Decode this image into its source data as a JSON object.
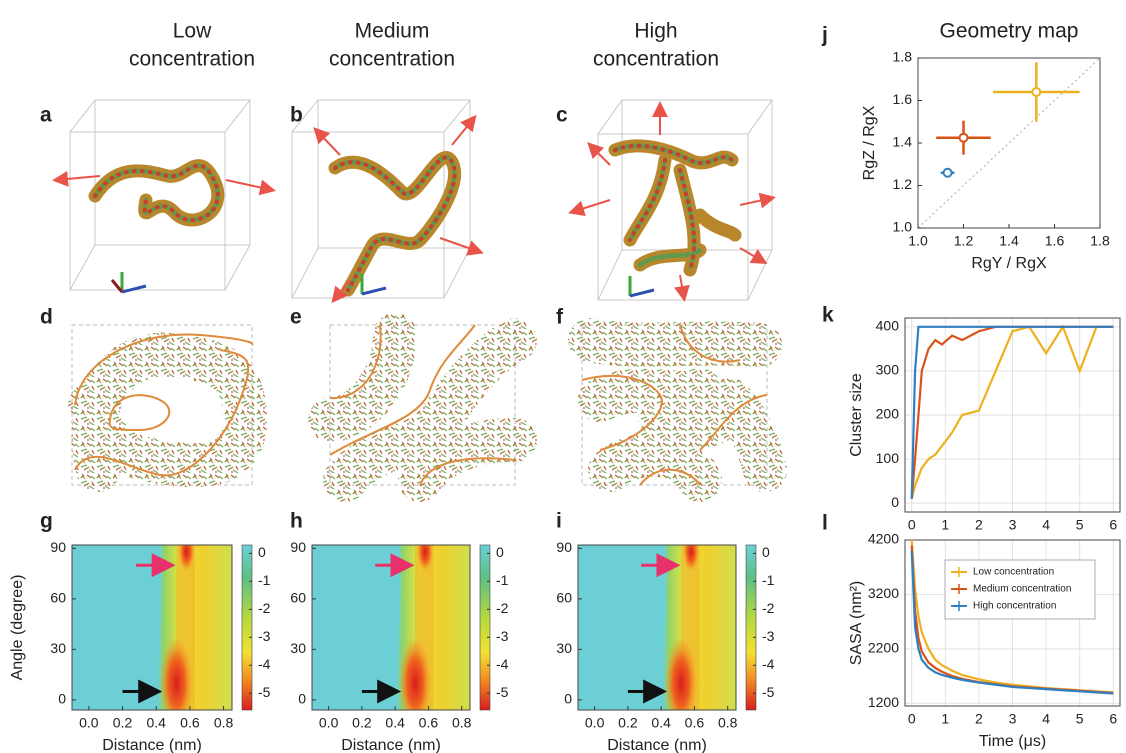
{
  "column_titles": [
    [
      "Low",
      "concentration"
    ],
    [
      "Medium",
      "concentration"
    ],
    [
      "High",
      "concentration"
    ]
  ],
  "panel_labels": [
    "a",
    "b",
    "c",
    "d",
    "e",
    "f",
    "g",
    "h",
    "i",
    "j",
    "k",
    "l"
  ],
  "chart_data": [
    {
      "type": "heatmap",
      "xlabel": "Distance (nm)",
      "ylabel": "Angle (degree)",
      "xlim": [
        -0.1,
        0.85
      ],
      "ylim": [
        -6,
        92
      ],
      "xticks": [
        {
          "value": 0,
          "label": "0.0"
        },
        {
          "value": 0.2,
          "label": "0.2"
        },
        {
          "value": 0.4,
          "label": "0.4"
        },
        {
          "value": 0.6,
          "label": "0.6"
        },
        {
          "value": 0.8,
          "label": "0.8"
        }
      ],
      "yticks": [
        0,
        30,
        60,
        90
      ],
      "clim": [
        -5.6,
        0.3
      ],
      "colorbar_ticks": [
        0,
        -1,
        -2,
        -3,
        -4,
        -5
      ]
    },
    {
      "type": "heatmap",
      "xlabel": "Distance (nm)",
      "xlim": [
        -0.1,
        0.85
      ],
      "ylim": [
        -6,
        92
      ],
      "xticks": [
        {
          "value": 0,
          "label": "0.0"
        },
        {
          "value": 0.2,
          "label": "0.2"
        },
        {
          "value": 0.4,
          "label": "0.4"
        },
        {
          "value": 0.6,
          "label": "0.6"
        },
        {
          "value": 0.8,
          "label": "0.8"
        }
      ],
      "yticks": [
        0,
        30,
        60,
        90
      ],
      "clim": [
        -5.6,
        0.3
      ],
      "colorbar_ticks": [
        0,
        -1,
        -2,
        -3,
        -4,
        -5
      ]
    },
    {
      "type": "heatmap",
      "xlabel": "Distance (nm)",
      "xlim": [
        -0.1,
        0.85
      ],
      "ylim": [
        -6,
        92
      ],
      "xticks": [
        {
          "value": 0,
          "label": "0.0"
        },
        {
          "value": 0.2,
          "label": "0.2"
        },
        {
          "value": 0.4,
          "label": "0.4"
        },
        {
          "value": 0.6,
          "label": "0.6"
        },
        {
          "value": 0.8,
          "label": "0.8"
        }
      ],
      "yticks": [
        0,
        30,
        60,
        90
      ],
      "clim": [
        -5.6,
        0.3
      ],
      "colorbar_ticks": [
        0,
        -1,
        -2,
        -3,
        -4,
        -5
      ]
    },
    {
      "type": "scatter",
      "title": "Geometry map",
      "xlabel": "RgY / RgX",
      "ylabel": "RgZ / RgX",
      "xlim": [
        1,
        1.8
      ],
      "ylim": [
        1,
        1.8
      ],
      "diagonal": true,
      "xticks": [
        {
          "value": 1,
          "label": "1.0"
        },
        {
          "value": 1.2,
          "label": "1.2"
        },
        {
          "value": 1.4,
          "label": "1.4"
        },
        {
          "value": 1.6,
          "label": "1.6"
        },
        {
          "value": 1.8,
          "label": "1.8"
        }
      ],
      "yticks": [
        {
          "value": 1,
          "label": "1.0"
        },
        {
          "value": 1.2,
          "label": "1.2"
        },
        {
          "value": 1.4,
          "label": "1.4"
        },
        {
          "value": 1.6,
          "label": "1.6"
        },
        {
          "value": 1.8,
          "label": "1.8"
        }
      ],
      "series": [
        {
          "color": "#edb120",
          "x": [
            1.52
          ],
          "values": [
            1.64
          ],
          "xerr": [
            0.19
          ],
          "yerr": [
            0.14
          ]
        },
        {
          "color": "#d95319",
          "x": [
            1.2
          ],
          "values": [
            1.425
          ],
          "xerr": [
            0.12
          ],
          "yerr": [
            0.08
          ]
        },
        {
          "color": "#2f7fc1",
          "x": [
            1.13
          ],
          "values": [
            1.26
          ],
          "xerr": [
            0.03
          ],
          "yerr": [
            0.02
          ]
        }
      ]
    },
    {
      "type": "line",
      "ylabel": "Cluster size",
      "grid": true,
      "xlim": [
        -0.2,
        6.2
      ],
      "ylim": [
        -20,
        420
      ],
      "xticks": [
        0,
        1,
        2,
        3,
        4,
        5,
        6
      ],
      "yticks": [
        0,
        100,
        200,
        300,
        400
      ],
      "x": [
        0,
        0.1,
        0.2,
        0.3,
        0.5,
        0.7,
        0.9,
        1.2,
        1.5,
        2,
        2.5,
        3,
        3.5,
        4,
        4.5,
        5,
        5.5,
        6
      ],
      "series": [
        {
          "color": "#edb120",
          "values": [
            10,
            40,
            60,
            80,
            100,
            110,
            130,
            160,
            200,
            210,
            300,
            390,
            400,
            340,
            400,
            300,
            400,
            400
          ]
        },
        {
          "color": "#d95319",
          "values": [
            10,
            100,
            200,
            300,
            350,
            370,
            360,
            380,
            370,
            390,
            400,
            400,
            400,
            400,
            400,
            400,
            400,
            400
          ]
        },
        {
          "color": "#2f7fc1",
          "values": [
            10,
            300,
            400,
            400,
            400,
            400,
            400,
            400,
            400,
            400,
            400,
            400,
            400,
            400,
            400,
            400,
            400,
            400
          ]
        }
      ]
    },
    {
      "type": "line",
      "ylabel": "SASA (nm²)",
      "xlabel": "Time (μs)",
      "grid": true,
      "legend": "upper right",
      "xlim": [
        -0.2,
        6.2
      ],
      "ylim": [
        1150,
        4200
      ],
      "xticks": [
        0,
        1,
        2,
        3,
        4,
        5,
        6
      ],
      "yticks": [
        1200,
        2200,
        3200,
        4200
      ],
      "x": [
        0,
        0.1,
        0.2,
        0.3,
        0.5,
        0.7,
        0.9,
        1.2,
        1.5,
        2,
        2.5,
        3,
        3.5,
        4,
        4.5,
        5,
        5.5,
        6
      ],
      "series": [
        {
          "name": "Low concentration",
          "color": "#edb120",
          "values": [
            4200,
            3300,
            2800,
            2500,
            2200,
            2000,
            1900,
            1800,
            1720,
            1640,
            1580,
            1540,
            1510,
            1480,
            1460,
            1440,
            1420,
            1400
          ]
        },
        {
          "name": "Medium concentration",
          "color": "#d95319",
          "values": [
            4100,
            2900,
            2400,
            2150,
            1950,
            1850,
            1780,
            1700,
            1650,
            1590,
            1550,
            1510,
            1490,
            1470,
            1450,
            1430,
            1410,
            1390
          ]
        },
        {
          "name": "High concentration",
          "color": "#2f7fc1",
          "values": [
            4000,
            2600,
            2200,
            2000,
            1850,
            1770,
            1720,
            1670,
            1630,
            1580,
            1540,
            1500,
            1480,
            1460,
            1440,
            1420,
            1400,
            1380
          ]
        }
      ]
    }
  ]
}
